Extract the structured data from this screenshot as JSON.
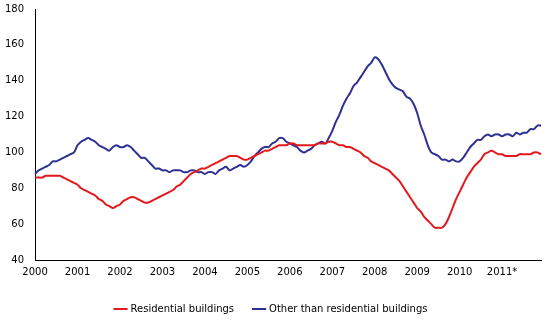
{
  "chart_data": {
    "type": "line",
    "categories": [
      "2000",
      null,
      null,
      null,
      null,
      null,
      null,
      null,
      null,
      null,
      null,
      null,
      "2001",
      null,
      null,
      null,
      null,
      null,
      null,
      null,
      null,
      null,
      null,
      null,
      "2002",
      null,
      null,
      null,
      null,
      null,
      null,
      null,
      null,
      null,
      null,
      null,
      "2003",
      null,
      null,
      null,
      null,
      null,
      null,
      null,
      null,
      null,
      null,
      null,
      "2004",
      null,
      null,
      null,
      null,
      null,
      null,
      null,
      null,
      null,
      null,
      null,
      "2005",
      null,
      null,
      null,
      null,
      null,
      null,
      null,
      null,
      null,
      null,
      null,
      "2006",
      null,
      null,
      null,
      null,
      null,
      null,
      null,
      null,
      null,
      null,
      null,
      "2007",
      null,
      null,
      null,
      null,
      null,
      null,
      null,
      null,
      null,
      null,
      null,
      "2008",
      null,
      null,
      null,
      null,
      null,
      null,
      null,
      null,
      null,
      null,
      null,
      "2009",
      null,
      null,
      null,
      null,
      null,
      null,
      null,
      null,
      null,
      null,
      null,
      "2010",
      null,
      null,
      null,
      null,
      null,
      null,
      null,
      null,
      null,
      null,
      null,
      "2011*",
      null,
      null,
      null,
      null,
      null,
      null,
      null,
      null,
      null,
      null,
      null
    ],
    "series": [
      {
        "name": "Residential buildings",
        "color": "#e3191e",
        "values": [
          86,
          86,
          86,
          87,
          87,
          87,
          87,
          87,
          86,
          85,
          84,
          83,
          82,
          80,
          79,
          78,
          77,
          76,
          74,
          73,
          71,
          70,
          69,
          70,
          71,
          73,
          74,
          75,
          75,
          74,
          73,
          72,
          72,
          73,
          74,
          75,
          76,
          77,
          78,
          79,
          81,
          82,
          84,
          86,
          88,
          89,
          90,
          91,
          91,
          92,
          93,
          94,
          95,
          96,
          97,
          98,
          98,
          98,
          97,
          96,
          96,
          97,
          98,
          99,
          100,
          101,
          101,
          102,
          103,
          104,
          104,
          104,
          105,
          105,
          104,
          104,
          104,
          104,
          104,
          104,
          105,
          105,
          105,
          106,
          106,
          105,
          104,
          104,
          103,
          103,
          102,
          101,
          100,
          98,
          97,
          95,
          94,
          93,
          92,
          91,
          90,
          88,
          86,
          84,
          81,
          78,
          75,
          72,
          69,
          67,
          64,
          62,
          60,
          58,
          58,
          58,
          60,
          64,
          69,
          74,
          78,
          82,
          86,
          89,
          92,
          94,
          96,
          99,
          100,
          101,
          100,
          99,
          99,
          98,
          98,
          98,
          98,
          99,
          99,
          99,
          99,
          100,
          100,
          99
        ]
      },
      {
        "name": "Other than residential buildings",
        "color": "#2e3192",
        "values": [
          88,
          90,
          91,
          92,
          93,
          95,
          95,
          96,
          97,
          98,
          99,
          100,
          104,
          106,
          107,
          108,
          107,
          106,
          104,
          103,
          102,
          101,
          103,
          104,
          103,
          103,
          104,
          103,
          101,
          99,
          97,
          97,
          95,
          93,
          91,
          91,
          90,
          90,
          89,
          90,
          90,
          90,
          89,
          89,
          90,
          90,
          89,
          89,
          88,
          89,
          89,
          88,
          90,
          91,
          92,
          90,
          91,
          92,
          93,
          92,
          93,
          95,
          98,
          100,
          102,
          103,
          103,
          105,
          106,
          108,
          108,
          106,
          105,
          104,
          103,
          101,
          100,
          101,
          102,
          104,
          105,
          106,
          105,
          108,
          112,
          117,
          121,
          126,
          130,
          133,
          137,
          139,
          142,
          145,
          148,
          150,
          153,
          152,
          149,
          145,
          141,
          138,
          136,
          135,
          134,
          131,
          130,
          127,
          122,
          115,
          110,
          104,
          100,
          99,
          98,
          96,
          96,
          95,
          96,
          95,
          95,
          97,
          100,
          103,
          105,
          107,
          107,
          109,
          110,
          109,
          110,
          110,
          109,
          110,
          110,
          109,
          111,
          110,
          111,
          111,
          113,
          113,
          115,
          115
        ]
      }
    ],
    "ylim": [
      40,
      180
    ],
    "yticks": [
      40,
      60,
      80,
      100,
      120,
      140,
      160,
      180
    ],
    "grid": false,
    "legend": "bottom"
  }
}
